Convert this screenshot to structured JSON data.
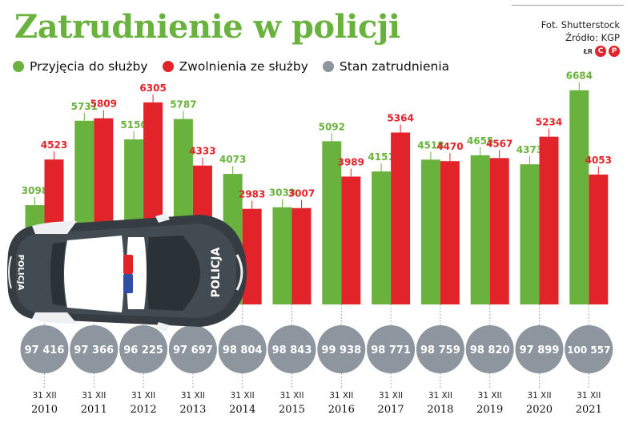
{
  "header": {
    "title": "Zatrudnienie w policji",
    "credit_photo": "Fot. Shutterstock",
    "credit_source": "Źródło: KGP",
    "logo_text": "ŁR",
    "logo_letters": [
      "C",
      "P"
    ]
  },
  "legend": [
    {
      "label": "Przyjęcia do służby",
      "color": "#6ab23e"
    },
    {
      "label": "Zwolnienia ze służby",
      "color": "#e2242a"
    },
    {
      "label": "Stan zatrudnienia",
      "color": "#8d969e"
    }
  ],
  "car": {
    "label_side": "POLICJA",
    "label_roof": "POLICJA",
    "icon": "police-car-icon"
  },
  "chart_data": {
    "type": "bar",
    "title": "Zatrudnienie w policji",
    "categories": [
      "2010",
      "2011",
      "2012",
      "2013",
      "2014",
      "2015",
      "2016",
      "2017",
      "2018",
      "2019",
      "2020",
      "2021"
    ],
    "date_prefix": "31 XII",
    "series": [
      {
        "name": "Przyjęcia do służby",
        "color": "#6ab23e",
        "values": [
          3098,
          5731,
          5150,
          5787,
          4073,
          3033,
          5092,
          4151,
          4518,
          4655,
          4373,
          6684
        ]
      },
      {
        "name": "Zwolnienia ze służby",
        "color": "#e2242a",
        "values": [
          4523,
          5809,
          6305,
          4333,
          2983,
          3007,
          3989,
          5364,
          4470,
          4567,
          5234,
          4053
        ]
      }
    ],
    "employment": {
      "name": "Stan zatrudnienia",
      "color": "#8d969e",
      "values": [
        97416,
        97366,
        96225,
        97697,
        98804,
        98843,
        99938,
        98771,
        98759,
        98820,
        97899,
        100557
      ],
      "labels": [
        "97 416",
        "97 366",
        "96 225",
        "97 697",
        "98 804",
        "98 843",
        "99 938",
        "98 771",
        "98 759",
        "98 820",
        "97 899",
        "100 557"
      ]
    },
    "ylim": [
      0,
      7000
    ],
    "grid": false,
    "legend_position": "top-left"
  }
}
